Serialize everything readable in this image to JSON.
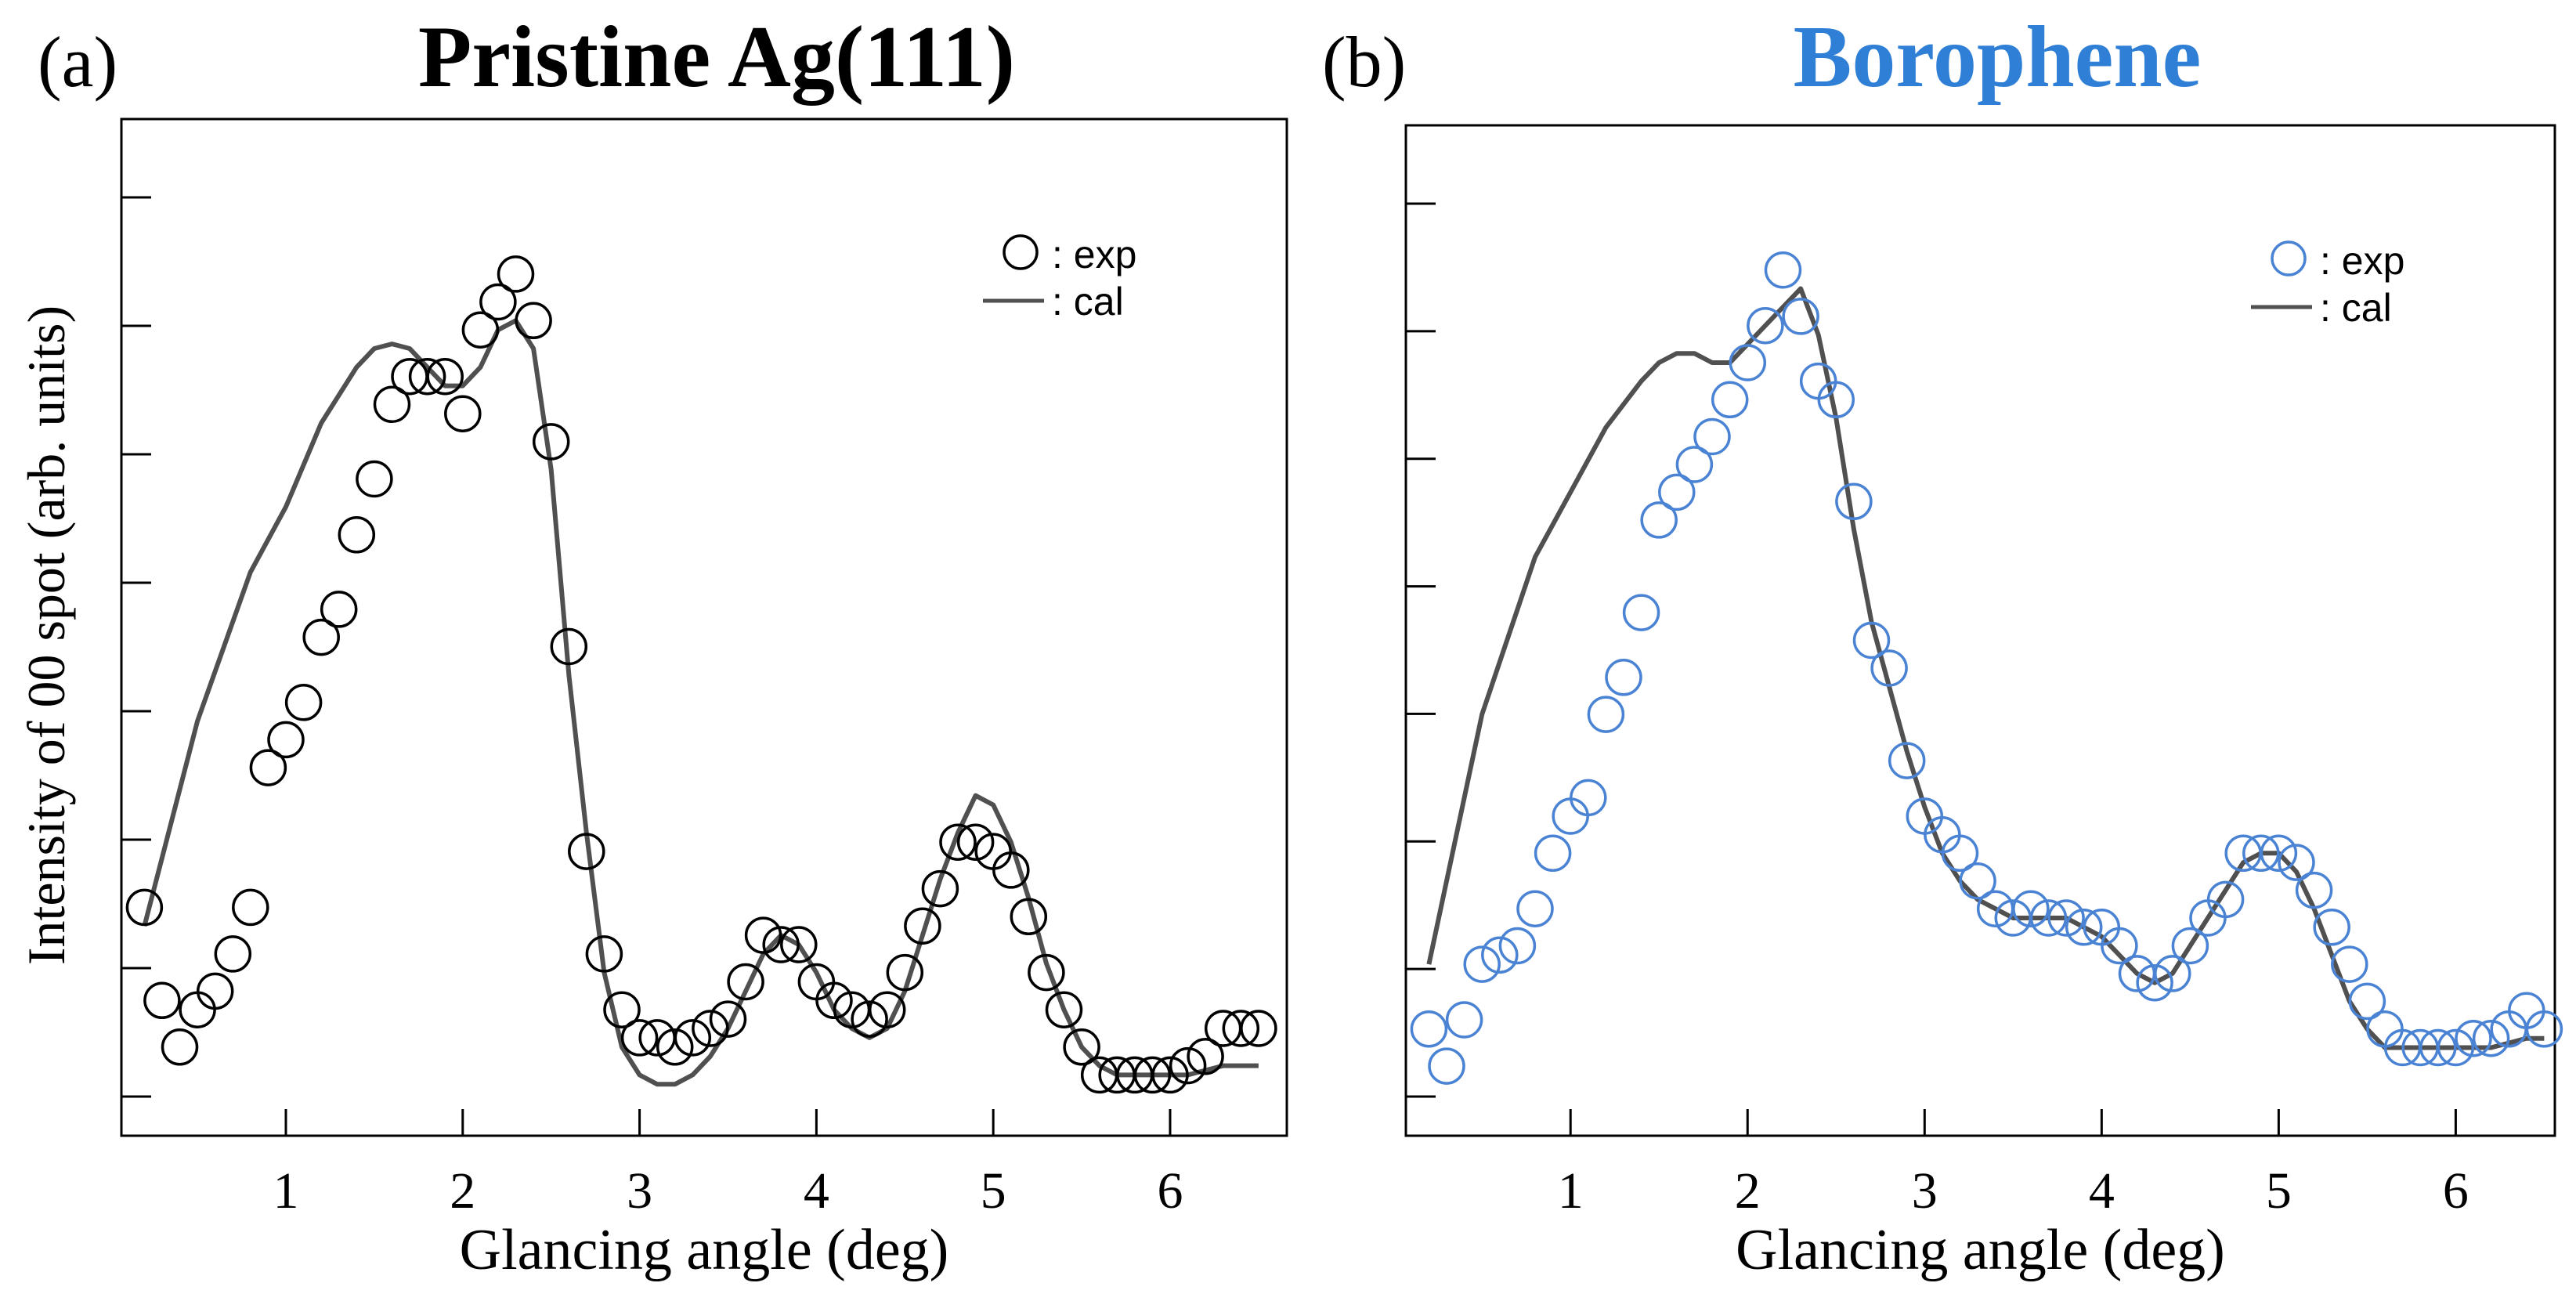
{
  "chart_data": [
    {
      "type": "scatter",
      "panel_label": "(a)",
      "title": "Pristine Ag(111)",
      "title_color": "#000000",
      "marker_color": "#000000",
      "line_color": "#505050",
      "xlabel": "Glancing angle (deg)",
      "ylabel": "Intensity of 00 spot (arb. units)",
      "xlim": [
        0,
        6.6
      ],
      "ylim": [
        0,
        1
      ],
      "xticks": [
        "1",
        "2",
        "3",
        "4",
        "5",
        "6"
      ],
      "grid": false,
      "legend_position": "top-right",
      "legend": {
        "exp_label": ": exp",
        "cal_label": ": cal"
      },
      "series": [
        {
          "name": "exp",
          "x": [
            0.2,
            0.3,
            0.4,
            0.5,
            0.6,
            0.7,
            0.8,
            0.9,
            1.0,
            1.1,
            1.2,
            1.3,
            1.4,
            1.5,
            1.6,
            1.7,
            1.8,
            1.9,
            2.0,
            2.1,
            2.2,
            2.3,
            2.4,
            2.5,
            2.6,
            2.7,
            2.8,
            2.9,
            3.0,
            3.1,
            3.2,
            3.3,
            3.4,
            3.5,
            3.6,
            3.7,
            3.8,
            3.9,
            4.0,
            4.1,
            4.2,
            4.3,
            4.4,
            4.5,
            4.6,
            4.7,
            4.8,
            4.9,
            5.0,
            5.1,
            5.2,
            5.3,
            5.4,
            5.5,
            5.6,
            5.7,
            5.8,
            5.9,
            6.0,
            6.1,
            6.2,
            6.3,
            6.4,
            6.5
          ],
          "y": [
            0.23,
            0.13,
            0.08,
            0.12,
            0.14,
            0.18,
            0.23,
            0.38,
            0.41,
            0.45,
            0.52,
            0.55,
            0.63,
            0.69,
            0.77,
            0.8,
            0.8,
            0.8,
            0.76,
            0.85,
            0.88,
            0.91,
            0.86,
            0.73,
            0.51,
            0.29,
            0.18,
            0.12,
            0.09,
            0.09,
            0.08,
            0.09,
            0.1,
            0.11,
            0.15,
            0.2,
            0.19,
            0.19,
            0.15,
            0.13,
            0.12,
            0.11,
            0.12,
            0.16,
            0.21,
            0.25,
            0.3,
            0.3,
            0.29,
            0.27,
            0.22,
            0.16,
            0.12,
            0.08,
            0.05,
            0.05,
            0.05,
            0.05,
            0.05,
            0.06,
            0.07,
            0.1,
            0.1,
            0.1
          ]
        },
        {
          "name": "cal",
          "x": [
            0.2,
            0.5,
            0.8,
            1.0,
            1.2,
            1.4,
            1.5,
            1.6,
            1.7,
            1.8,
            1.9,
            2.0,
            2.1,
            2.2,
            2.3,
            2.4,
            2.5,
            2.6,
            2.7,
            2.8,
            2.9,
            3.0,
            3.1,
            3.2,
            3.3,
            3.4,
            3.5,
            3.6,
            3.7,
            3.8,
            3.9,
            4.0,
            4.1,
            4.2,
            4.3,
            4.4,
            4.5,
            4.6,
            4.7,
            4.8,
            4.9,
            5.0,
            5.1,
            5.2,
            5.3,
            5.4,
            5.5,
            5.6,
            5.7,
            5.8,
            5.9,
            6.0,
            6.1,
            6.2,
            6.3,
            6.4,
            6.5
          ],
          "y": [
            0.21,
            0.43,
            0.59,
            0.66,
            0.75,
            0.81,
            0.83,
            0.835,
            0.83,
            0.81,
            0.79,
            0.79,
            0.81,
            0.85,
            0.86,
            0.83,
            0.7,
            0.48,
            0.31,
            0.16,
            0.08,
            0.05,
            0.04,
            0.04,
            0.05,
            0.07,
            0.1,
            0.14,
            0.18,
            0.2,
            0.19,
            0.16,
            0.12,
            0.1,
            0.09,
            0.1,
            0.14,
            0.2,
            0.26,
            0.31,
            0.35,
            0.34,
            0.3,
            0.24,
            0.17,
            0.12,
            0.08,
            0.06,
            0.05,
            0.05,
            0.05,
            0.05,
            0.05,
            0.055,
            0.06,
            0.06,
            0.06
          ]
        }
      ]
    },
    {
      "type": "scatter",
      "panel_label": "(b)",
      "title": "Borophene",
      "title_color": "#2f7fd6",
      "marker_color": "#4a83d4",
      "line_color": "#505050",
      "xlabel": "Glancing angle (deg)",
      "ylabel": "",
      "xlim": [
        0,
        6.6
      ],
      "ylim": [
        0,
        1
      ],
      "xticks": [
        "1",
        "2",
        "3",
        "4",
        "5",
        "6"
      ],
      "grid": false,
      "legend_position": "top-right",
      "legend": {
        "exp_label": ": exp",
        "cal_label": ": cal"
      },
      "series": [
        {
          "name": "exp",
          "x": [
            0.2,
            0.3,
            0.4,
            0.5,
            0.6,
            0.7,
            0.8,
            0.9,
            1.0,
            1.1,
            1.2,
            1.3,
            1.4,
            1.5,
            1.6,
            1.7,
            1.8,
            1.9,
            2.0,
            2.1,
            2.2,
            2.3,
            2.4,
            2.5,
            2.6,
            2.7,
            2.8,
            2.9,
            3.0,
            3.1,
            3.2,
            3.3,
            3.4,
            3.5,
            3.6,
            3.7,
            3.8,
            3.9,
            4.0,
            4.1,
            4.2,
            4.3,
            4.4,
            4.5,
            4.6,
            4.7,
            4.8,
            4.9,
            5.0,
            5.1,
            5.2,
            5.3,
            5.4,
            5.5,
            5.6,
            5.7,
            5.8,
            5.9,
            6.0,
            6.1,
            6.2,
            6.3,
            6.4,
            6.5
          ],
          "y": [
            0.1,
            0.06,
            0.11,
            0.17,
            0.18,
            0.19,
            0.23,
            0.29,
            0.33,
            0.35,
            0.44,
            0.48,
            0.55,
            0.65,
            0.68,
            0.71,
            0.74,
            0.78,
            0.82,
            0.86,
            0.92,
            0.87,
            0.8,
            0.78,
            0.67,
            0.52,
            0.49,
            0.39,
            0.33,
            0.31,
            0.29,
            0.26,
            0.23,
            0.22,
            0.23,
            0.22,
            0.22,
            0.21,
            0.21,
            0.19,
            0.16,
            0.15,
            0.16,
            0.19,
            0.22,
            0.24,
            0.29,
            0.29,
            0.29,
            0.28,
            0.25,
            0.21,
            0.17,
            0.13,
            0.1,
            0.08,
            0.08,
            0.08,
            0.08,
            0.09,
            0.09,
            0.1,
            0.12,
            0.1
          ]
        },
        {
          "name": "cal",
          "x": [
            0.2,
            0.5,
            0.8,
            1.0,
            1.2,
            1.4,
            1.5,
            1.6,
            1.7,
            1.8,
            1.9,
            2.0,
            2.1,
            2.2,
            2.3,
            2.4,
            2.5,
            2.6,
            2.7,
            2.8,
            2.9,
            3.0,
            3.1,
            3.2,
            3.3,
            3.4,
            3.5,
            3.6,
            3.7,
            3.8,
            3.9,
            4.0,
            4.1,
            4.2,
            4.3,
            4.4,
            4.5,
            4.6,
            4.7,
            4.8,
            4.9,
            5.0,
            5.1,
            5.2,
            5.3,
            5.4,
            5.5,
            5.6,
            5.7,
            5.8,
            5.9,
            6.0,
            6.1,
            6.2,
            6.3,
            6.4,
            6.5
          ],
          "y": [
            0.17,
            0.44,
            0.61,
            0.68,
            0.75,
            0.8,
            0.82,
            0.83,
            0.83,
            0.82,
            0.82,
            0.84,
            0.86,
            0.88,
            0.9,
            0.85,
            0.76,
            0.64,
            0.54,
            0.47,
            0.4,
            0.34,
            0.29,
            0.26,
            0.24,
            0.23,
            0.22,
            0.22,
            0.22,
            0.22,
            0.21,
            0.2,
            0.18,
            0.16,
            0.15,
            0.16,
            0.19,
            0.22,
            0.25,
            0.28,
            0.29,
            0.29,
            0.27,
            0.23,
            0.18,
            0.13,
            0.1,
            0.08,
            0.08,
            0.08,
            0.08,
            0.08,
            0.08,
            0.08,
            0.085,
            0.09,
            0.09
          ]
        }
      ]
    }
  ]
}
